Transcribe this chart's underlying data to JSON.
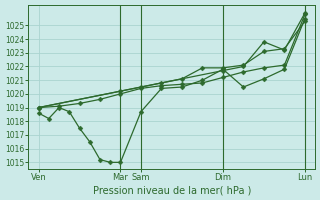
{
  "background_color": "#cceae8",
  "grid_color": "#aad4d0",
  "line_color": "#2d6a2d",
  "xlabel": "Pression niveau de la mer( hPa )",
  "ylim": [
    1014.5,
    1026.5
  ],
  "yticks": [
    1015,
    1016,
    1017,
    1018,
    1019,
    1020,
    1021,
    1022,
    1023,
    1024,
    1025
  ],
  "xlim": [
    0,
    28
  ],
  "xtick_labels": [
    "Ven",
    "Mar",
    "Sam",
    "Dim",
    "Lun"
  ],
  "xtick_positions": [
    1,
    9,
    11,
    19,
    27
  ],
  "vline_positions": [
    9,
    11,
    19,
    27
  ],
  "series1_x": [
    1,
    2,
    3,
    4,
    5,
    6,
    7,
    8,
    9,
    11,
    13,
    15,
    17,
    19,
    21,
    23,
    25,
    27
  ],
  "series1_y": [
    1018.6,
    1018.2,
    1019.0,
    1018.7,
    1017.5,
    1016.5,
    1015.2,
    1015.0,
    1015.0,
    1018.7,
    1020.4,
    1020.5,
    1021.0,
    1021.8,
    1020.5,
    1021.1,
    1021.8,
    1025.5
  ],
  "series2_x": [
    1,
    3,
    5,
    7,
    9,
    11,
    13,
    15,
    17,
    19,
    21,
    23,
    25,
    27
  ],
  "series2_y": [
    1019.0,
    1019.1,
    1019.3,
    1019.6,
    1020.0,
    1020.4,
    1020.6,
    1020.7,
    1020.8,
    1021.2,
    1021.6,
    1021.9,
    1022.1,
    1025.8
  ],
  "series3_x": [
    1,
    9,
    11,
    13,
    15,
    17,
    19,
    21,
    23,
    25,
    27
  ],
  "series3_y": [
    1019.0,
    1020.2,
    1020.5,
    1020.8,
    1021.1,
    1021.9,
    1021.9,
    1022.1,
    1023.1,
    1023.3,
    1025.3
  ],
  "series4_x": [
    1,
    19,
    21,
    23,
    25,
    27
  ],
  "series4_y": [
    1019.0,
    1021.7,
    1022.0,
    1023.8,
    1023.2,
    1025.9
  ],
  "marker_size": 2.5,
  "line_width": 0.9
}
